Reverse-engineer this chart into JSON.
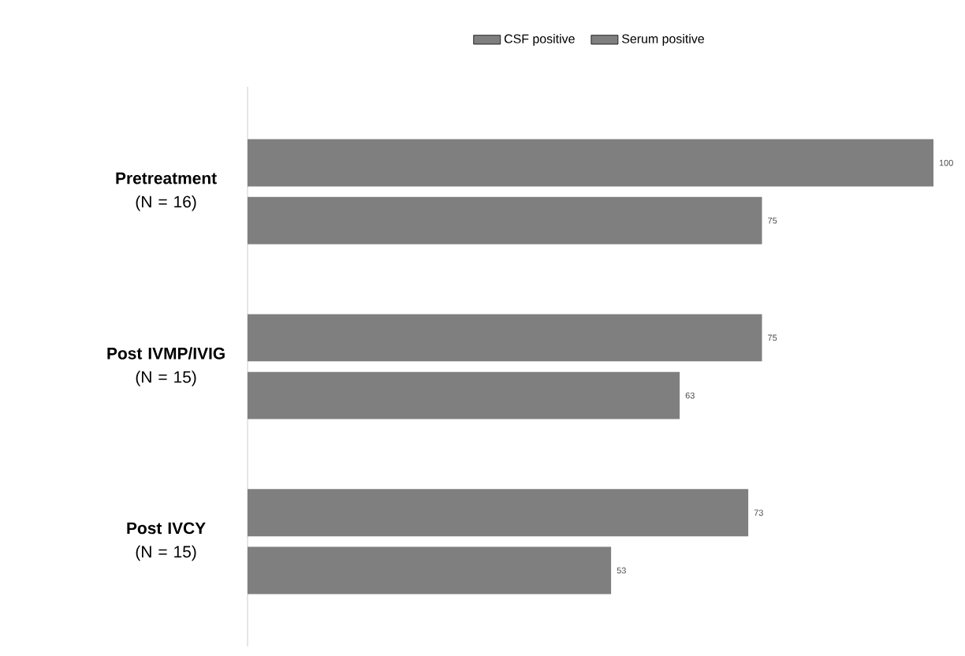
{
  "chart_data": {
    "type": "bar",
    "orientation": "horizontal",
    "categories": [
      "**Pretreatment** (N = 16)",
      "**Post IVMP/IVIG** (N = 15)",
      "**Post IVCY** (N = 15)"
    ],
    "series": [
      {
        "name": "CSF positive",
        "color": "#7f7f7f",
        "values": [
          100,
          75,
          73
        ]
      },
      {
        "name": "Serum positive",
        "color": "#7f7f7f",
        "values": [
          75,
          63,
          53
        ]
      }
    ],
    "data_labels": true,
    "legend": "top"
  }
}
